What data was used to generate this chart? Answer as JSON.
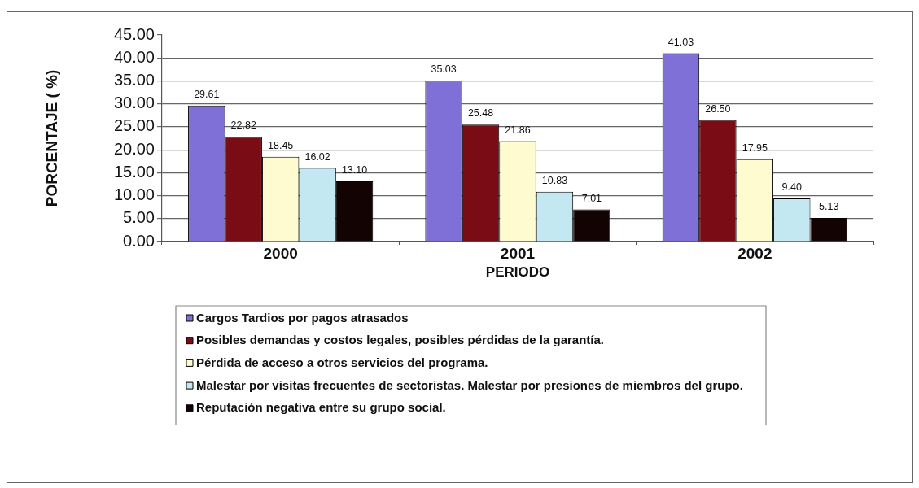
{
  "chart_data": {
    "type": "bar",
    "xlabel": "PERIODO",
    "ylabel": "PORCENTAJE ( %)",
    "categories": [
      "2000",
      "2001",
      "2002"
    ],
    "series": [
      {
        "name": "Cargos Tardios por pagos atrasados",
        "color": "#7f70d8",
        "values": [
          29.61,
          35.03,
          41.03
        ],
        "value_labels": [
          "29.61",
          "35.03",
          "41.03"
        ]
      },
      {
        "name": "Posibles demandas y costos legales, posibles pérdidas de la garantía.",
        "color": "#7a0c16",
        "values": [
          22.82,
          25.48,
          26.5
        ],
        "value_labels": [
          "22.82",
          "25.48",
          "26.50"
        ]
      },
      {
        "name": "Pérdida de acceso a otros servicios del programa.",
        "color": "#fffbd0",
        "values": [
          18.45,
          21.86,
          17.95
        ],
        "value_labels": [
          "18.45",
          "21.86",
          "17.95"
        ]
      },
      {
        "name": "Malestar por visitas frecuentes de sectoristas. Malestar por presiones de miembros del grupo.",
        "color": "#c4e8f2",
        "values": [
          16.02,
          10.83,
          9.4
        ],
        "value_labels": [
          "16.02",
          "10.83",
          "9.40"
        ]
      },
      {
        "name": "Reputación negativa entre su grupo social.",
        "color": "#140303",
        "values": [
          13.1,
          7.01,
          5.13
        ],
        "value_labels": [
          "13.10",
          "7.01",
          "5.13"
        ]
      }
    ],
    "ylim": [
      0,
      45
    ],
    "yticks": [
      {
        "value": 0,
        "label": "0.00"
      },
      {
        "value": 5,
        "label": "5.00"
      },
      {
        "value": 10,
        "label": "10.00"
      },
      {
        "value": 15,
        "label": "15.00"
      },
      {
        "value": 20,
        "label": "20.00"
      },
      {
        "value": 25,
        "label": "25.00"
      },
      {
        "value": 30,
        "label": "30.00"
      },
      {
        "value": 35,
        "label": "35.00"
      },
      {
        "value": 40,
        "label": "40.00"
      },
      {
        "value": 45,
        "label": "45.00"
      }
    ],
    "grid": "y",
    "legend": "bottom"
  }
}
